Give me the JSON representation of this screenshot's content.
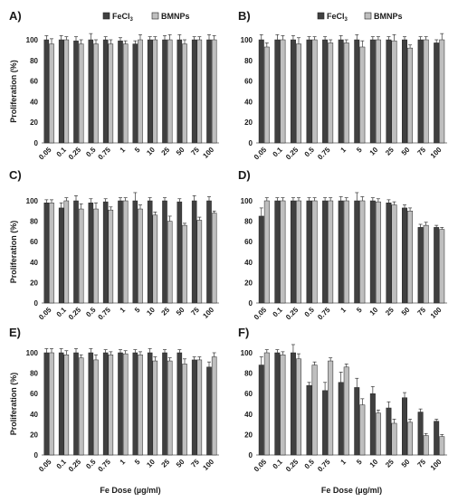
{
  "legend": [
    {
      "label": "FeCl3",
      "color": "#404040"
    },
    {
      "label": "BMNPs",
      "color": "#bfbfbf"
    }
  ],
  "colors": {
    "fecl3": "#404040",
    "bmnps": "#bfbfbf",
    "axis": "#808080",
    "error": "#333333"
  },
  "chart_data": [
    {
      "panel": "A)",
      "type": "bar",
      "categories": [
        "0.05",
        "0.1",
        "0.25",
        "0.5",
        "0.75",
        "1",
        "5",
        "10",
        "25",
        "50",
        "75",
        "100"
      ],
      "ylabel": "Proliferation (%)",
      "xlabel": "",
      "ylim": [
        0,
        100
      ],
      "yticks": [
        0,
        20,
        40,
        60,
        80,
        100
      ],
      "series": [
        {
          "name": "FeCl3",
          "values": [
            100,
            100,
            99,
            100,
            100,
            99,
            96,
            100,
            100,
            100,
            100,
            100
          ],
          "errors": [
            4,
            4,
            4,
            6,
            3,
            3,
            3,
            3,
            4,
            5,
            3,
            5
          ]
        },
        {
          "name": "BMNPs",
          "values": [
            96,
            100,
            96,
            96,
            96,
            96,
            100,
            100,
            100,
            96,
            100,
            100
          ],
          "errors": [
            5,
            3,
            4,
            4,
            4,
            3,
            5,
            3,
            5,
            4,
            3,
            4
          ]
        }
      ]
    },
    {
      "panel": "B)",
      "type": "bar",
      "categories": [
        "0.05",
        "0.1",
        "0.25",
        "0.5",
        "0.75",
        "1",
        "5",
        "10",
        "25",
        "50",
        "75",
        "100"
      ],
      "ylabel": "",
      "xlabel": "",
      "ylim": [
        0,
        100
      ],
      "yticks": [
        0,
        20,
        40,
        60,
        80,
        100
      ],
      "series": [
        {
          "name": "FeCl3",
          "values": [
            100,
            100,
            100,
            100,
            100,
            100,
            100,
            100,
            100,
            100,
            100,
            97
          ],
          "errors": [
            5,
            5,
            4,
            3,
            3,
            4,
            5,
            3,
            3,
            3,
            3,
            3
          ]
        },
        {
          "name": "BMNPs",
          "values": [
            93,
            100,
            96,
            100,
            97,
            97,
            93,
            100,
            99,
            92,
            100,
            100
          ],
          "errors": [
            4,
            4,
            6,
            3,
            3,
            3,
            6,
            3,
            6,
            3,
            3,
            6
          ]
        }
      ]
    },
    {
      "panel": "C)",
      "type": "bar",
      "categories": [
        "0.05",
        "0.1",
        "0.25",
        "0.5",
        "0.75",
        "1",
        "5",
        "10",
        "25",
        "50",
        "75",
        "100"
      ],
      "ylabel": "Proliferation (%)",
      "xlabel": "",
      "ylim": [
        0,
        100
      ],
      "yticks": [
        0,
        20,
        40,
        60,
        80,
        100
      ],
      "series": [
        {
          "name": "FeCl3",
          "values": [
            98,
            93,
            100,
            98,
            99,
            100,
            100,
            100,
            100,
            99,
            100,
            100
          ],
          "errors": [
            3,
            5,
            5,
            4,
            3,
            3,
            8,
            3,
            3,
            3,
            5,
            4
          ]
        },
        {
          "name": "BMNPs",
          "values": [
            98,
            100,
            92,
            92,
            91,
            100,
            92,
            86,
            80,
            76,
            81,
            88
          ],
          "errors": [
            3,
            3,
            5,
            6,
            3,
            3,
            4,
            3,
            5,
            2,
            3,
            2
          ]
        }
      ]
    },
    {
      "panel": "D)",
      "type": "bar",
      "categories": [
        "0.05",
        "0.1",
        "0.25",
        "0.5",
        "0.75",
        "1",
        "5",
        "10",
        "25",
        "50",
        "75",
        "100"
      ],
      "ylabel": "",
      "xlabel": "",
      "ylim": [
        0,
        100
      ],
      "yticks": [
        0,
        20,
        40,
        60,
        80,
        100
      ],
      "series": [
        {
          "name": "FeCl3",
          "values": [
            85,
            100,
            100,
            100,
            100,
            100,
            100,
            100,
            98,
            93,
            74,
            74
          ],
          "errors": [
            8,
            3,
            3,
            3,
            3,
            4,
            8,
            3,
            3,
            3,
            3,
            2
          ]
        },
        {
          "name": "BMNPs",
          "values": [
            100,
            100,
            100,
            100,
            100,
            100,
            100,
            99,
            96,
            90,
            76,
            72
          ],
          "errors": [
            3,
            3,
            3,
            3,
            3,
            3,
            4,
            3,
            3,
            3,
            3,
            2
          ]
        }
      ]
    },
    {
      "panel": "E)",
      "type": "bar",
      "categories": [
        "0.05",
        "0.1",
        "0.25",
        "0.5",
        "0.75",
        "1",
        "5",
        "10",
        "25",
        "50",
        "75",
        "100"
      ],
      "ylabel": "Proliferation (%)",
      "xlabel": "Fe Dose (µg/ml)",
      "ylim": [
        0,
        100
      ],
      "yticks": [
        0,
        20,
        40,
        60,
        80,
        100
      ],
      "series": [
        {
          "name": "FeCl3",
          "values": [
            100,
            100,
            100,
            100,
            100,
            100,
            100,
            100,
            100,
            100,
            93,
            86
          ],
          "errors": [
            4,
            4,
            4,
            4,
            3,
            3,
            3,
            4,
            3,
            3,
            3,
            5
          ]
        },
        {
          "name": "BMNPs",
          "values": [
            100,
            98,
            95,
            93,
            98,
            99,
            98,
            92,
            92,
            89,
            93,
            96
          ],
          "errors": [
            4,
            4,
            3,
            5,
            3,
            3,
            3,
            4,
            3,
            5,
            3,
            4
          ]
        }
      ]
    },
    {
      "panel": "F)",
      "type": "bar",
      "categories": [
        "0.05",
        "0.1",
        "0.25",
        "0.5",
        "0.75",
        "1",
        "5",
        "10",
        "25",
        "50",
        "75",
        "100"
      ],
      "ylabel": "",
      "xlabel": "Fe Dose (µg/ml)",
      "ylim": [
        0,
        100
      ],
      "yticks": [
        0,
        20,
        40,
        60,
        80,
        100
      ],
      "series": [
        {
          "name": "FeCl3",
          "values": [
            88,
            100,
            100,
            68,
            63,
            71,
            66,
            60,
            46,
            56,
            42,
            33
          ],
          "errors": [
            8,
            3,
            8,
            3,
            8,
            10,
            9,
            7,
            6,
            5,
            3,
            2
          ]
        },
        {
          "name": "BMNPs",
          "values": [
            100,
            98,
            94,
            88,
            92,
            86,
            49,
            41,
            31,
            32,
            19,
            18
          ],
          "errors": [
            3,
            3,
            5,
            3,
            3,
            3,
            6,
            3,
            4,
            3,
            2,
            2
          ]
        }
      ]
    }
  ]
}
